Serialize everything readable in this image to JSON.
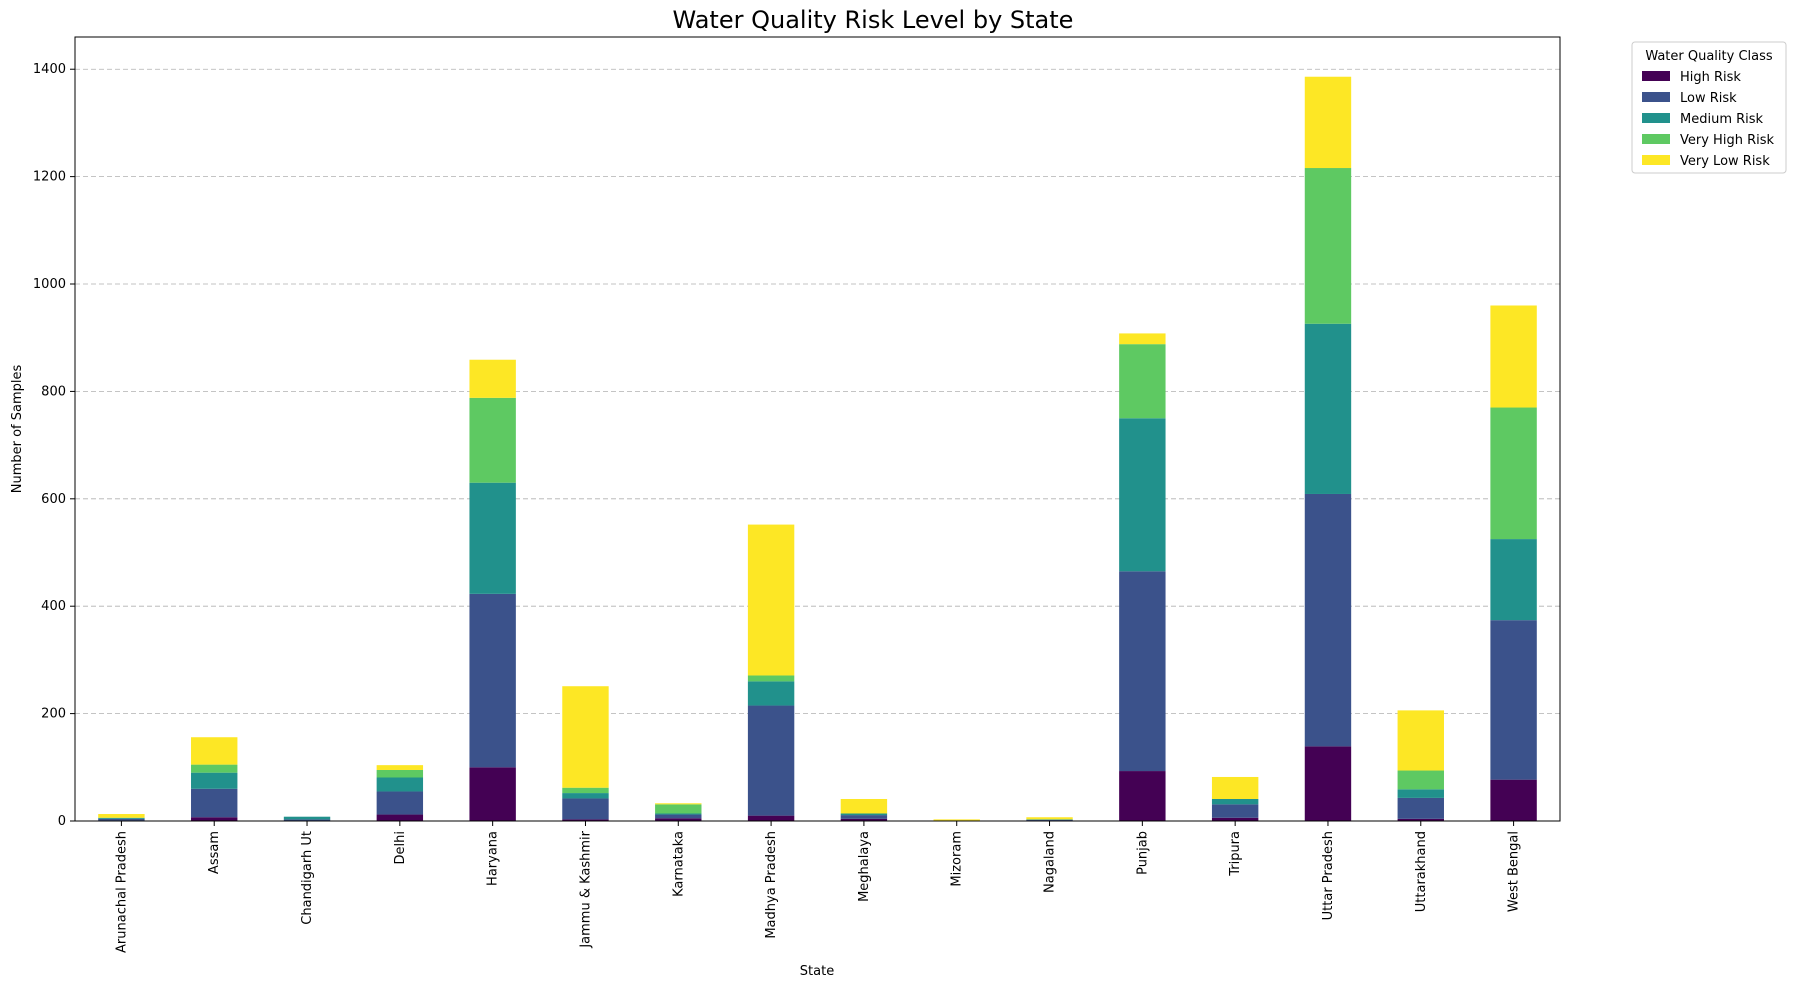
{
  "chart_data": {
    "type": "bar",
    "stacked": true,
    "title": "Water Quality Risk Level by State",
    "xlabel": "State",
    "ylabel": "Number of Samples",
    "ylim": [
      0,
      1460
    ],
    "yticks": [
      0,
      200,
      400,
      600,
      800,
      1000,
      1200,
      1400
    ],
    "grid": "y-dashed",
    "legend_title": "Water Quality Class",
    "legend_position": "outside-top-right",
    "categories": [
      "Arunachal Pradesh",
      "Assam",
      "Chandigarh Ut",
      "Delhi",
      "Haryana",
      "Jammu & Kashmir",
      "Karnataka",
      "Madhya Pradesh",
      "Meghalaya",
      "Mizoram",
      "Nagaland",
      "Punjab",
      "Tripura",
      "Uttar Pradesh",
      "Uttarakhand",
      "West Bengal"
    ],
    "series": [
      {
        "name": "High Risk",
        "color": "#440154",
        "values": [
          1,
          7,
          0,
          12,
          100,
          3,
          5,
          10,
          4,
          0,
          1,
          93,
          6,
          139,
          4,
          77
        ]
      },
      {
        "name": "Low Risk",
        "color": "#3b528b",
        "values": [
          3,
          53,
          3,
          43,
          323,
          39,
          7,
          205,
          7,
          1,
          1,
          372,
          25,
          470,
          39,
          297
        ]
      },
      {
        "name": "Medium Risk",
        "color": "#21918c",
        "values": [
          2,
          30,
          5,
          26,
          207,
          10,
          2,
          45,
          3,
          0,
          1,
          285,
          10,
          317,
          16,
          151
        ]
      },
      {
        "name": "Very High Risk",
        "color": "#5ec962",
        "values": [
          0,
          15,
          0,
          14,
          158,
          10,
          17,
          11,
          0,
          0,
          0,
          138,
          0,
          290,
          35,
          245
        ]
      },
      {
        "name": "Very Low Risk",
        "color": "#fde725",
        "values": [
          7,
          51,
          0,
          9,
          71,
          189,
          2,
          281,
          27,
          2,
          4,
          20,
          41,
          170,
          112,
          190
        ]
      }
    ]
  }
}
